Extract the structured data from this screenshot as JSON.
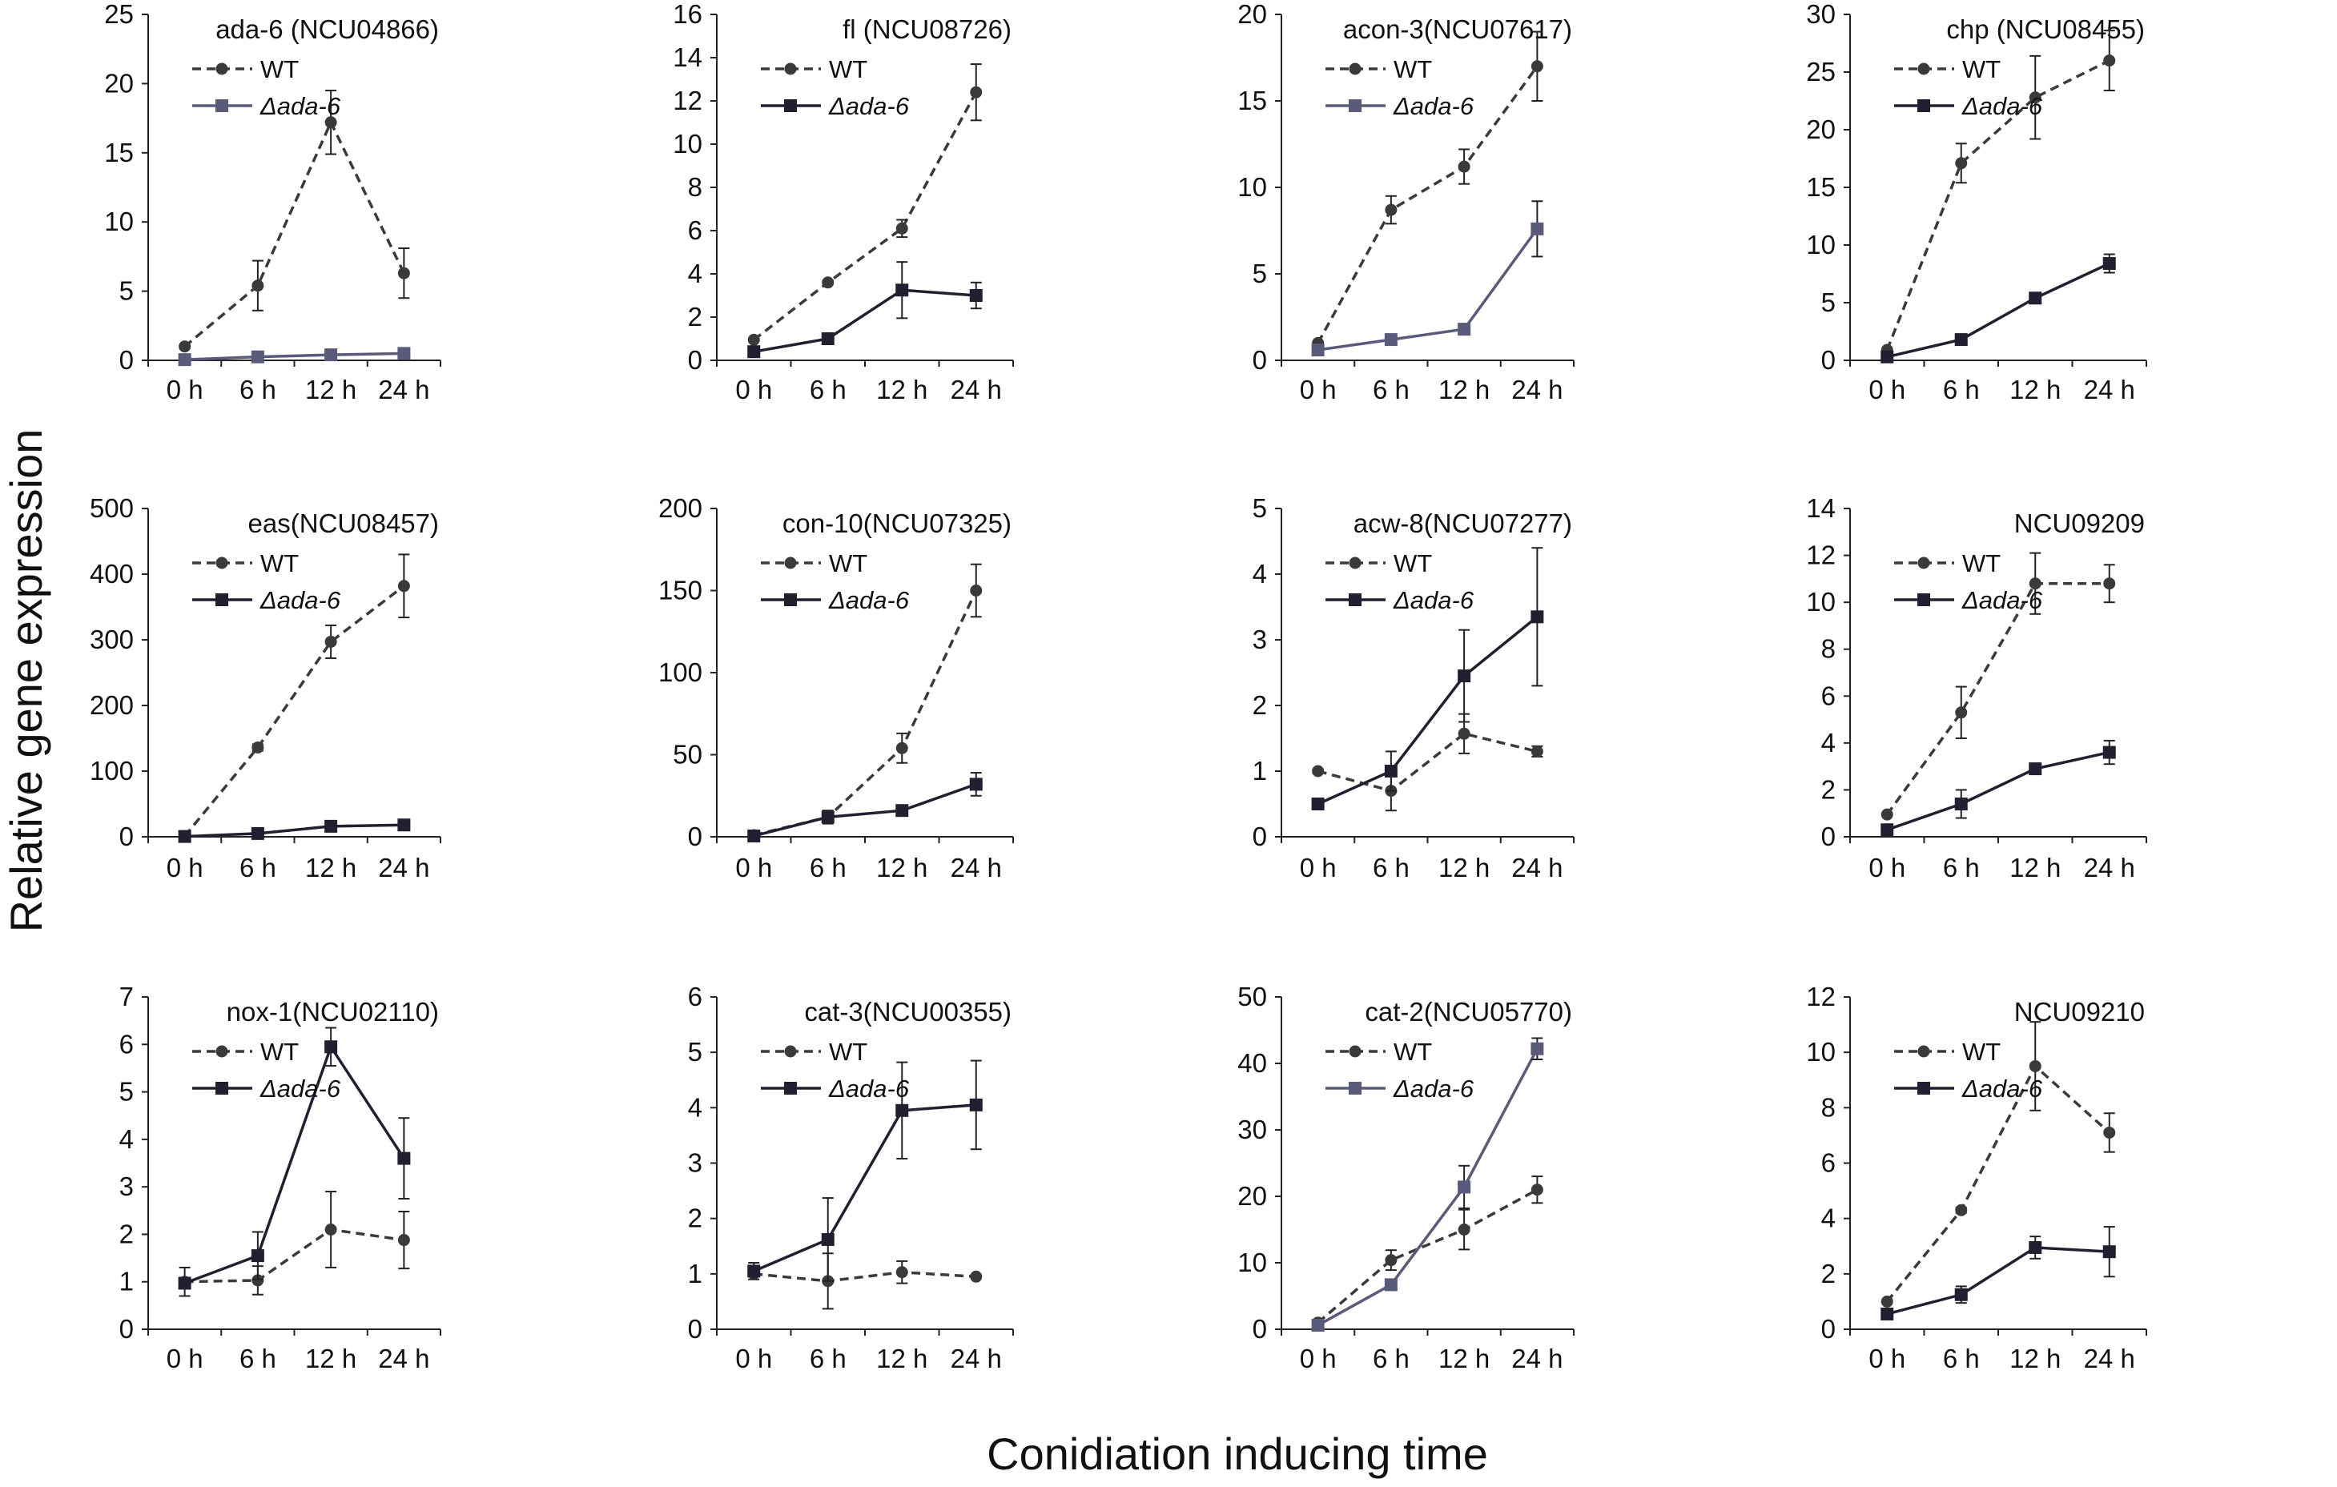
{
  "figure": {
    "ylabel": "Relative gene expression",
    "xlabel": "Conidiation inducing time"
  },
  "colors": {
    "wt_line": "#3a3a3a",
    "mutant_line": "#202030",
    "mutant_line_alt": "#5a5a7a",
    "axis": "#222222"
  },
  "chart_data": [
    {
      "type": "line",
      "title": "ada-6  (NCU04866)",
      "categories": [
        "0 h",
        "6 h",
        "12 h",
        "24 h"
      ],
      "ylim": [
        0,
        25
      ],
      "yticks": [
        0,
        5,
        10,
        15,
        20,
        25
      ],
      "legend": "top-left",
      "mutant_style": "alt",
      "series": [
        {
          "name": "WT",
          "label_prefix": "-●-",
          "style": "dashed",
          "marker": "circle",
          "values": [
            1.0,
            5.4,
            17.2,
            6.3
          ],
          "errors": [
            0.1,
            1.8,
            2.3,
            1.8
          ]
        },
        {
          "name": "Δada-6",
          "label_prefix": "",
          "style": "solid",
          "marker": "square",
          "values": [
            0.05,
            0.25,
            0.4,
            0.5
          ],
          "errors": [
            0.02,
            0.05,
            0.05,
            0.08
          ]
        }
      ]
    },
    {
      "type": "line",
      "title": "fl (NCU08726)",
      "categories": [
        "0 h",
        "6 h",
        "12 h",
        "24 h"
      ],
      "ylim": [
        0,
        16
      ],
      "yticks": [
        0,
        2,
        4,
        6,
        8,
        10,
        12,
        14,
        16
      ],
      "legend": "top-left",
      "mutant_style": "normal",
      "series": [
        {
          "name": "WT",
          "label_prefix": "",
          "style": "dashed",
          "marker": "circle",
          "values": [
            0.95,
            3.6,
            6.1,
            12.4
          ],
          "errors": [
            0.05,
            0.1,
            0.4,
            1.3
          ]
        },
        {
          "name": "Δada-6",
          "label_prefix": "",
          "style": "solid",
          "marker": "square",
          "values": [
            0.4,
            1.0,
            3.25,
            3.0
          ],
          "errors": [
            0.05,
            0.1,
            1.3,
            0.6
          ]
        }
      ]
    },
    {
      "type": "line",
      "title": "acon-3(NCU07617)",
      "categories": [
        "0 h",
        "6 h",
        "12 h",
        "24 h"
      ],
      "ylim": [
        0,
        20
      ],
      "yticks": [
        0,
        5,
        10,
        15,
        20
      ],
      "legend": "top-left",
      "mutant_style": "alt",
      "series": [
        {
          "name": "WT",
          "label_prefix": "",
          "style": "dashed",
          "marker": "circle",
          "values": [
            1.0,
            8.7,
            11.2,
            17.0
          ],
          "errors": [
            0.1,
            0.8,
            1.0,
            2.0
          ]
        },
        {
          "name": "Δada-6",
          "label_prefix": "",
          "style": "solid",
          "marker": "square",
          "values": [
            0.6,
            1.2,
            1.8,
            7.6
          ],
          "errors": [
            0.05,
            0.1,
            0.15,
            1.6
          ]
        }
      ]
    },
    {
      "type": "line",
      "title": "chp (NCU08455)",
      "categories": [
        "0 h",
        "6 h",
        "12 h",
        "24 h"
      ],
      "ylim": [
        0,
        30
      ],
      "yticks": [
        0,
        5,
        10,
        15,
        20,
        25,
        30
      ],
      "legend": "top-left",
      "mutant_style": "normal",
      "series": [
        {
          "name": "WT",
          "label_prefix": "",
          "style": "dashed",
          "marker": "circle",
          "values": [
            0.9,
            17.1,
            22.8,
            26.0
          ],
          "errors": [
            0.1,
            1.7,
            3.6,
            2.6
          ]
        },
        {
          "name": "Δada-6",
          "label_prefix": "",
          "style": "solid",
          "marker": "square",
          "values": [
            0.3,
            1.8,
            5.4,
            8.4
          ],
          "errors": [
            0.05,
            0.2,
            0.3,
            0.8
          ]
        }
      ]
    },
    {
      "type": "line",
      "title": "eas(NCU08457)",
      "categories": [
        "0 h",
        "6 h",
        "12 h",
        "24 h"
      ],
      "ylim": [
        0,
        500
      ],
      "yticks": [
        0,
        100,
        200,
        300,
        400,
        500
      ],
      "legend": "top-left",
      "mutant_style": "normal",
      "series": [
        {
          "name": "WT",
          "label_prefix": "-●-",
          "style": "dashed",
          "marker": "circle",
          "values": [
            1,
            136,
            297,
            382
          ],
          "errors": [
            1,
            5,
            25,
            48
          ]
        },
        {
          "name": "Δada-6",
          "label_prefix": "",
          "style": "solid",
          "marker": "square",
          "values": [
            0.5,
            5,
            16,
            18
          ],
          "errors": [
            0.2,
            1,
            2,
            2
          ]
        }
      ]
    },
    {
      "type": "line",
      "title": "con-10(NCU07325)",
      "categories": [
        "0 h",
        "6 h",
        "12 h",
        "24 h"
      ],
      "ylim": [
        0,
        200
      ],
      "yticks": [
        0,
        50,
        100,
        150,
        200
      ],
      "legend": "top-left",
      "mutant_style": "normal",
      "series": [
        {
          "name": "WT",
          "label_prefix": "",
          "style": "dashed",
          "marker": "circle",
          "values": [
            1,
            12,
            54,
            150
          ],
          "errors": [
            0.2,
            3,
            9,
            16
          ]
        },
        {
          "name": "Δada-6",
          "label_prefix": "",
          "style": "solid",
          "marker": "square",
          "values": [
            0.5,
            12,
            16,
            32
          ],
          "errors": [
            0.2,
            4,
            2,
            7
          ]
        }
      ]
    },
    {
      "type": "line",
      "title": "acw-8(NCU07277)",
      "categories": [
        "0 h",
        "6 h",
        "12 h",
        "24 h"
      ],
      "ylim": [
        0,
        5
      ],
      "yticks": [
        0,
        1,
        2,
        3,
        4,
        5
      ],
      "legend": "top-left",
      "mutant_style": "normal",
      "series": [
        {
          "name": "WT",
          "label_prefix": "",
          "style": "dashed",
          "marker": "circle",
          "values": [
            1.0,
            0.7,
            1.57,
            1.3
          ],
          "errors": [
            0.03,
            0.3,
            0.3,
            0.08
          ]
        },
        {
          "name": "Δada-6",
          "label_prefix": "",
          "style": "solid",
          "marker": "square",
          "values": [
            0.5,
            1.0,
            2.45,
            3.35
          ],
          "errors": [
            0.05,
            0.3,
            0.7,
            1.05
          ]
        }
      ]
    },
    {
      "type": "line",
      "title": "NCU09209",
      "categories": [
        "0 h",
        "6 h",
        "12 h",
        "24 h"
      ],
      "ylim": [
        0,
        14
      ],
      "yticks": [
        0,
        2,
        4,
        6,
        8,
        10,
        12,
        14
      ],
      "legend": "top-left",
      "mutant_style": "normal",
      "series": [
        {
          "name": "WT",
          "label_prefix": "",
          "style": "dashed",
          "marker": "circle",
          "values": [
            0.95,
            5.3,
            10.8,
            10.8
          ],
          "errors": [
            0.05,
            1.1,
            1.3,
            0.8
          ]
        },
        {
          "name": "Δada-6",
          "label_prefix": "",
          "style": "solid",
          "marker": "square",
          "values": [
            0.3,
            1.4,
            2.9,
            3.6
          ],
          "errors": [
            0.05,
            0.6,
            0.15,
            0.5
          ]
        }
      ]
    },
    {
      "type": "line",
      "title": "nox-1(NCU02110)",
      "categories": [
        "0 h",
        "6 h",
        "12 h",
        "24 h"
      ],
      "ylim": [
        0,
        7
      ],
      "yticks": [
        0,
        1,
        2,
        3,
        4,
        5,
        6,
        7
      ],
      "legend": "top-left",
      "mutant_style": "normal",
      "series": [
        {
          "name": "WT",
          "label_prefix": "",
          "style": "dashed",
          "marker": "circle",
          "values": [
            1.0,
            1.03,
            2.1,
            1.88
          ],
          "errors": [
            0.3,
            0.3,
            0.8,
            0.6
          ]
        },
        {
          "name": "Δada-6",
          "label_prefix": "",
          "style": "solid",
          "marker": "square",
          "values": [
            0.97,
            1.55,
            5.95,
            3.6
          ],
          "errors": [
            0.1,
            0.5,
            0.4,
            0.85
          ]
        }
      ]
    },
    {
      "type": "line",
      "title": "cat-3(NCU00355)",
      "categories": [
        "0 h",
        "6 h",
        "12 h",
        "24 h"
      ],
      "ylim": [
        0,
        6
      ],
      "yticks": [
        0,
        1,
        2,
        3,
        4,
        5,
        6
      ],
      "legend": "top-left",
      "mutant_style": "normal",
      "series": [
        {
          "name": "WT",
          "label_prefix": "",
          "style": "dashed",
          "marker": "circle",
          "values": [
            1.0,
            0.87,
            1.03,
            0.95
          ],
          "errors": [
            0.05,
            0.5,
            0.2,
            0.03
          ]
        },
        {
          "name": "Δada-6",
          "label_prefix": "",
          "style": "solid",
          "marker": "square",
          "values": [
            1.05,
            1.62,
            3.95,
            4.05
          ],
          "errors": [
            0.15,
            0.75,
            0.87,
            0.8
          ]
        }
      ]
    },
    {
      "type": "line",
      "title": "cat-2(NCU05770)",
      "categories": [
        "0 h",
        "6 h",
        "12 h",
        "24 h"
      ],
      "ylim": [
        0,
        50
      ],
      "yticks": [
        0,
        10,
        20,
        30,
        40,
        50
      ],
      "legend": "top-left",
      "mutant_style": "alt",
      "series": [
        {
          "name": "WT",
          "label_prefix": "",
          "style": "dashed",
          "marker": "circle",
          "values": [
            1.0,
            10.4,
            15.0,
            21.0
          ],
          "errors": [
            0.1,
            1.5,
            3.0,
            2.0
          ]
        },
        {
          "name": "Δada-6",
          "label_prefix": "",
          "style": "solid",
          "marker": "square",
          "values": [
            0.6,
            6.7,
            21.4,
            42.2
          ],
          "errors": [
            0.05,
            0.3,
            3.2,
            1.6
          ]
        }
      ]
    },
    {
      "type": "line",
      "title": "NCU09210",
      "categories": [
        "0 h",
        "6 h",
        "12 h",
        "24 h"
      ],
      "ylim": [
        0,
        12
      ],
      "yticks": [
        0,
        2,
        4,
        6,
        8,
        10,
        12
      ],
      "legend": "top-left",
      "mutant_style": "normal",
      "series": [
        {
          "name": "WT",
          "label_prefix": "",
          "style": "dashed",
          "marker": "circle",
          "values": [
            1.0,
            4.3,
            9.5,
            7.1
          ],
          "errors": [
            0.05,
            0.1,
            1.6,
            0.7
          ]
        },
        {
          "name": "Δada-6",
          "label_prefix": "",
          "style": "solid",
          "marker": "square",
          "values": [
            0.55,
            1.25,
            2.95,
            2.8
          ],
          "errors": [
            0.05,
            0.3,
            0.4,
            0.9
          ]
        }
      ]
    }
  ]
}
